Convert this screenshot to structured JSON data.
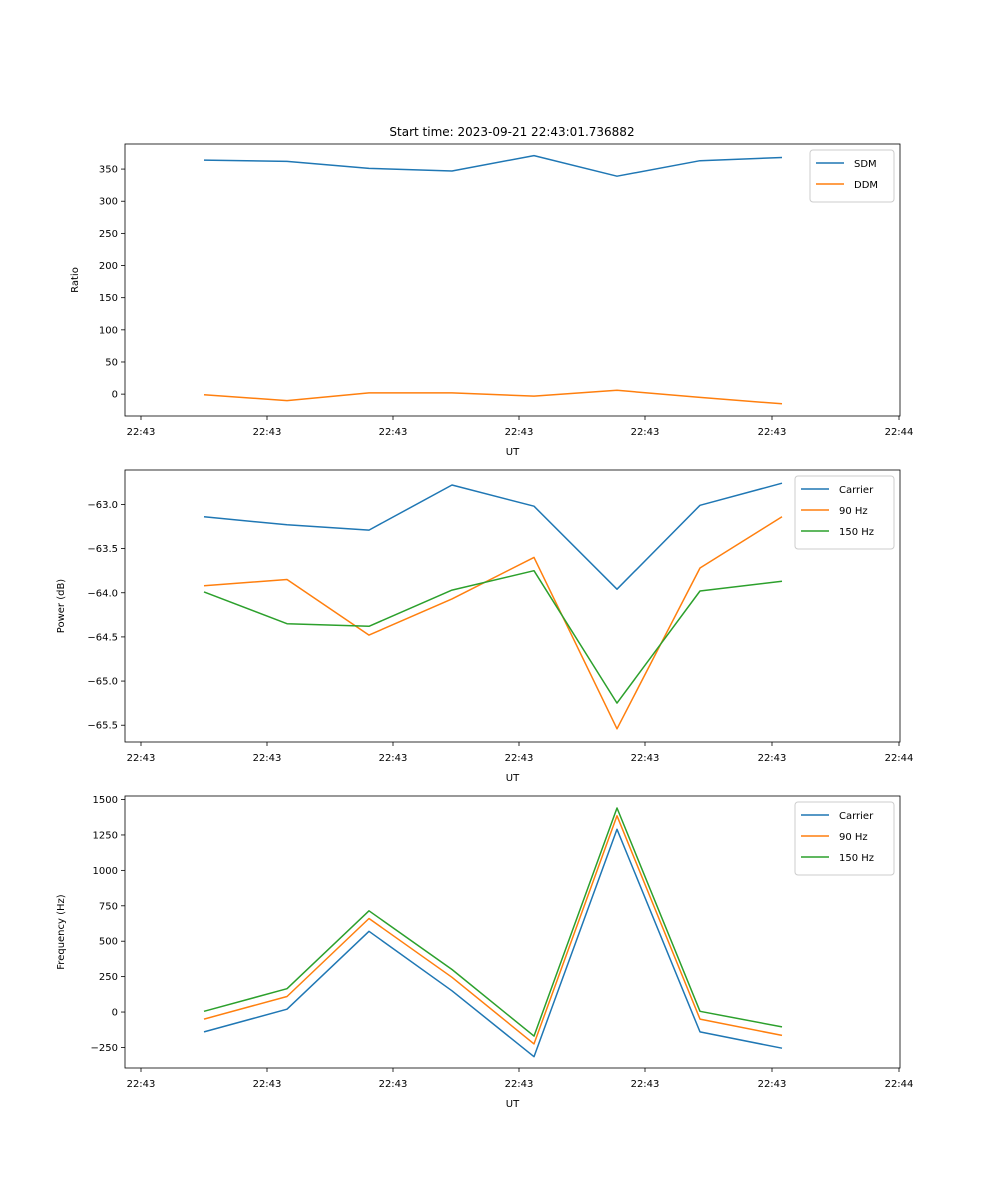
{
  "chart_data": [
    {
      "type": "line",
      "title": "Start time: 2023-09-21 22:43:01.736882",
      "xlabel": "UT",
      "ylabel": "Ratio",
      "xticks": [
        "22:43",
        "22:43",
        "22:43",
        "22:43",
        "22:43",
        "22:43",
        "22:44"
      ],
      "yticks": [
        0,
        50,
        100,
        150,
        200,
        250,
        300,
        350
      ],
      "ylim": [
        -34,
        389
      ],
      "legend": "top-right",
      "series": [
        {
          "name": "SDM",
          "color": "#1f77b4",
          "values": [
            364,
            362,
            351,
            347,
            371,
            339,
            363,
            368
          ]
        },
        {
          "name": "DDM",
          "color": "#ff7f0e",
          "values": [
            -1,
            -10,
            2,
            2,
            -3,
            6,
            -5,
            -15
          ]
        }
      ]
    },
    {
      "type": "line",
      "title": "",
      "xlabel": "UT",
      "ylabel": "Power (dB)",
      "xticks": [
        "22:43",
        "22:43",
        "22:43",
        "22:43",
        "22:43",
        "22:43",
        "22:44"
      ],
      "yticks": [
        -63.0,
        -63.5,
        -64.0,
        -64.5,
        -65.0,
        -65.5
      ],
      "ylim": [
        -65.69,
        -62.61
      ],
      "legend": "top-right",
      "series": [
        {
          "name": "Carrier",
          "color": "#1f77b4",
          "values": [
            -63.14,
            -63.23,
            -63.29,
            -62.78,
            -63.02,
            -63.96,
            -63.01,
            -62.76
          ]
        },
        {
          "name": "90 Hz",
          "color": "#ff7f0e",
          "values": [
            -63.92,
            -63.85,
            -64.48,
            -64.07,
            -63.6,
            -65.54,
            -63.72,
            -63.14
          ]
        },
        {
          "name": "150 Hz",
          "color": "#2ca02c",
          "values": [
            -63.99,
            -64.35,
            -64.38,
            -63.97,
            -63.75,
            -65.25,
            -63.98,
            -63.87
          ]
        }
      ]
    },
    {
      "type": "line",
      "title": "",
      "xlabel": "UT",
      "ylabel": "Frequency (Hz)",
      "xticks": [
        "22:43",
        "22:43",
        "22:43",
        "22:43",
        "22:43",
        "22:43",
        "22:44"
      ],
      "yticks": [
        1500,
        1250,
        1000,
        750,
        500,
        250,
        0,
        -250
      ],
      "ylim": [
        -395,
        1525
      ],
      "legend": "top-right",
      "series": [
        {
          "name": "Carrier",
          "color": "#1f77b4",
          "values": [
            -140,
            20,
            570,
            150,
            -315,
            1290,
            -140,
            -255
          ]
        },
        {
          "name": "90 Hz",
          "color": "#ff7f0e",
          "values": [
            -50,
            110,
            660,
            245,
            -225,
            1385,
            -50,
            -165
          ]
        },
        {
          "name": "150 Hz",
          "color": "#2ca02c",
          "values": [
            5,
            165,
            715,
            300,
            -170,
            1440,
            5,
            -105
          ]
        }
      ]
    }
  ]
}
